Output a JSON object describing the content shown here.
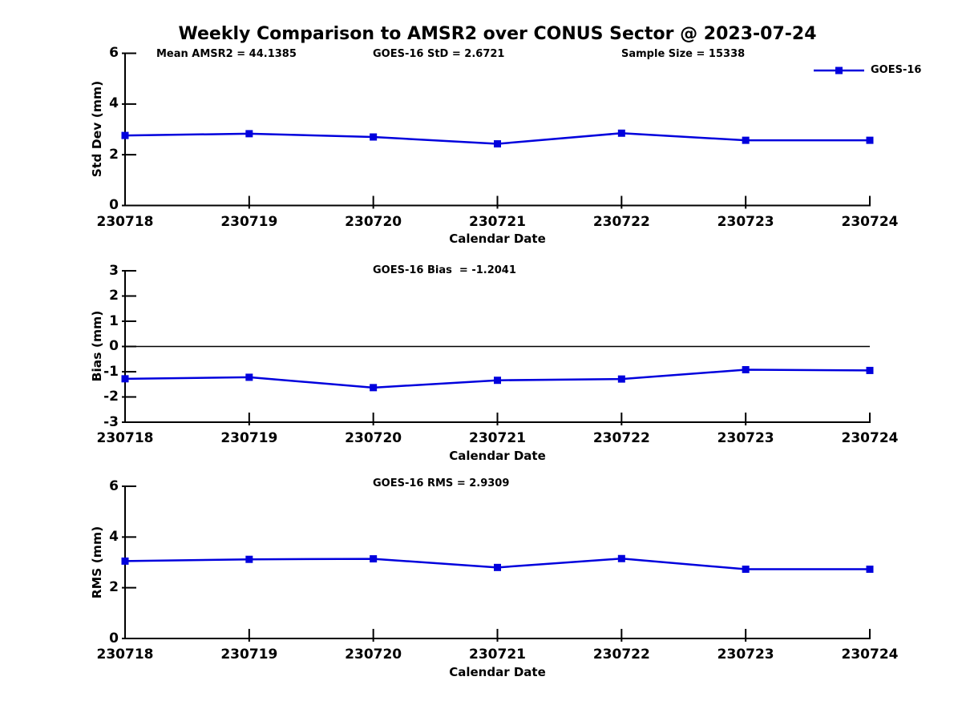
{
  "title": "Weekly Comparison to AMSR2 over CONUS Sector @ 2023-07-24",
  "colors": {
    "line": "#0000dd",
    "axis": "#000000",
    "zero_line": "#000000",
    "text": "#000000"
  },
  "chart_data": [
    {
      "type": "line",
      "id": "std-dev",
      "title": "",
      "ylabel": "Std Dev (mm)",
      "xlabel": "Calendar Date",
      "categories": [
        "230718",
        "230719",
        "230720",
        "230721",
        "230722",
        "230723",
        "230724"
      ],
      "series": [
        {
          "name": "GOES-16",
          "values": [
            2.76,
            2.83,
            2.7,
            2.43,
            2.85,
            2.57,
            2.57
          ]
        }
      ],
      "ylim": [
        0,
        6
      ],
      "yticks": [
        0,
        2,
        4,
        6
      ],
      "zero_line": false,
      "grid": false,
      "marker": "square",
      "legend_position": "top-right",
      "annotations": [
        "Mean AMSR2 = 44.1385",
        "GOES-16 StD = 2.6721",
        "Sample Size = 15338"
      ]
    },
    {
      "type": "line",
      "id": "bias",
      "title": "GOES-16 Bias  = -1.2041",
      "ylabel": "Bias (mm)",
      "xlabel": "Calendar Date",
      "categories": [
        "230718",
        "230719",
        "230720",
        "230721",
        "230722",
        "230723",
        "230724"
      ],
      "series": [
        {
          "name": "GOES-16",
          "values": [
            -1.28,
            -1.22,
            -1.63,
            -1.34,
            -1.29,
            -0.92,
            -0.95
          ]
        }
      ],
      "ylim": [
        -3,
        3
      ],
      "yticks": [
        3,
        2,
        1,
        0,
        -1,
        -2,
        -3
      ],
      "zero_line": true,
      "grid": false,
      "marker": "square",
      "legend_position": "none",
      "annotations": []
    },
    {
      "type": "line",
      "id": "rms",
      "title": "GOES-16 RMS = 2.9309",
      "ylabel": "RMS (mm)",
      "xlabel": "Calendar Date",
      "categories": [
        "230718",
        "230719",
        "230720",
        "230721",
        "230722",
        "230723",
        "230724"
      ],
      "series": [
        {
          "name": "GOES-16",
          "values": [
            3.05,
            3.12,
            3.14,
            2.8,
            3.15,
            2.73,
            2.73
          ]
        }
      ],
      "ylim": [
        0,
        6
      ],
      "yticks": [
        0,
        2,
        4,
        6
      ],
      "zero_line": false,
      "grid": false,
      "marker": "square",
      "legend_position": "none",
      "annotations": []
    }
  ]
}
